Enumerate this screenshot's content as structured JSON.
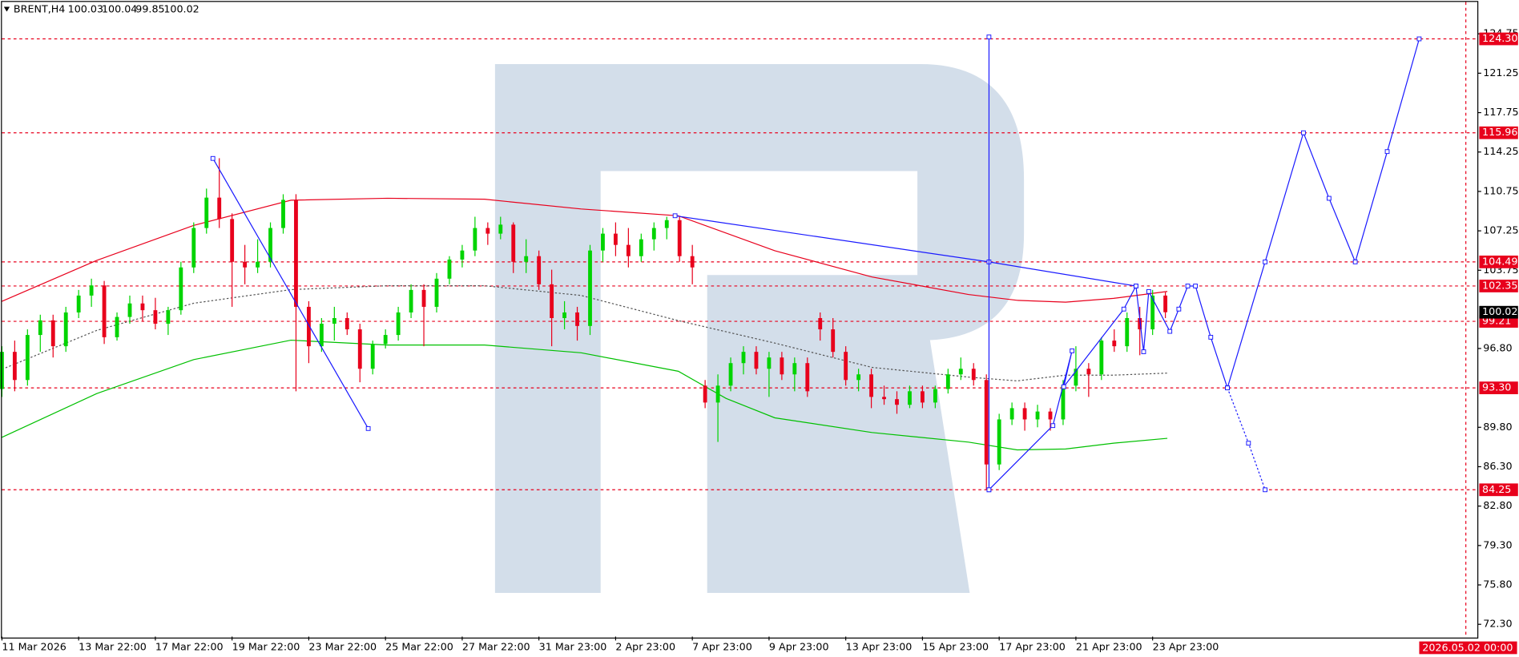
{
  "chart_data": {
    "type": "candlestick",
    "symbol": "BRENT,H4",
    "quote": [
      100.03,
      100.04,
      99.85,
      100.02
    ],
    "xlim": [
      0,
      230.8
    ],
    "ylim": [
      71.21,
      127.58
    ],
    "xticks": [
      {
        "value": 0,
        "label": "11 Mar 2026"
      },
      {
        "value": 12,
        "label": "13 Mar 22:00"
      },
      {
        "value": 24,
        "label": "17 Mar 22:00"
      },
      {
        "value": 36,
        "label": "19 Mar 22:00"
      },
      {
        "value": 48,
        "label": "23 Mar 22:00"
      },
      {
        "value": 60,
        "label": "25 Mar 22:00"
      },
      {
        "value": 72,
        "label": "27 Mar 22:00"
      },
      {
        "value": 84,
        "label": "31 Mar 23:00"
      },
      {
        "value": 96,
        "label": "2 Apr 23:00"
      },
      {
        "value": 108,
        "label": "7 Apr 23:00"
      },
      {
        "value": 120,
        "label": "9 Apr 23:00"
      },
      {
        "value": 132,
        "label": "13 Apr 23:00"
      },
      {
        "value": 144,
        "label": "15 Apr 23:00"
      },
      {
        "value": 156,
        "label": "17 Apr 23:00"
      },
      {
        "value": 168,
        "label": "21 Apr 23:00"
      },
      {
        "value": 180,
        "label": "23 Apr 23:00"
      }
    ],
    "time_marker": {
      "value": 229,
      "label": "2026.05.02 00:00"
    },
    "yticks": [
      124.75,
      121.25,
      117.75,
      114.25,
      110.75,
      107.25,
      103.75,
      {
        "value": 96.8,
        "label": "96.80"
      },
      {
        "value": 89.8,
        "label": "89.80"
      },
      {
        "value": 86.3,
        "label": "86.30"
      },
      {
        "value": 82.8,
        "label": "82.80"
      },
      {
        "value": 79.3,
        "label": "79.30"
      },
      {
        "value": 75.8,
        "label": "75.80"
      },
      {
        "value": 72.3,
        "label": "72.30"
      }
    ],
    "levels": [
      {
        "value": 124.3,
        "label": "124.30"
      },
      115.96,
      104.49,
      102.35,
      99.21,
      {
        "value": 93.3,
        "label": "93.30"
      },
      84.25
    ],
    "level_color": "#e8001c",
    "last_price": 100.02,
    "up_color": "#00d400",
    "down_color": "#e8001c",
    "x": [
      0,
      2,
      4,
      6,
      8,
      10,
      12,
      14,
      16,
      18,
      20,
      22,
      24,
      26,
      28,
      30,
      32,
      34,
      36,
      38,
      40,
      42,
      44,
      46,
      48,
      50,
      52,
      54,
      56,
      58,
      60,
      62,
      64,
      66,
      68,
      70,
      72,
      74,
      76,
      78,
      80,
      82,
      84,
      86,
      88,
      90,
      92,
      94,
      96,
      98,
      100,
      102,
      104,
      106,
      108,
      110,
      112,
      114,
      116,
      118,
      120,
      122,
      124,
      126,
      128,
      130,
      132,
      134,
      136,
      138,
      140,
      142,
      144,
      146,
      148,
      150,
      152,
      154,
      156,
      158,
      160,
      162,
      164,
      166,
      168,
      170,
      172,
      174,
      176,
      178,
      180,
      182
    ],
    "ohlc": [
      [
        93.2,
        97,
        92.5,
        96.5
      ],
      [
        96.5,
        97.5,
        93,
        94
      ],
      [
        94,
        98.5,
        93.5,
        98
      ],
      [
        98,
        99.8,
        96.5,
        99.3
      ],
      [
        99.3,
        99.8,
        96,
        97
      ],
      [
        97,
        100.5,
        96.5,
        100
      ],
      [
        100,
        102,
        99.5,
        101.5
      ],
      [
        101.5,
        103,
        100.5,
        102.4
      ],
      [
        102.4,
        102.8,
        97.2,
        97.8
      ],
      [
        97.8,
        100,
        97.5,
        99.6
      ],
      [
        99.6,
        101.5,
        99,
        100.8
      ],
      [
        100.8,
        101.5,
        99.2,
        100.2
      ],
      [
        100.2,
        101.3,
        98.5,
        99
      ],
      [
        99,
        100.5,
        98,
        100.2
      ],
      [
        100.2,
        104.5,
        99.8,
        104
      ],
      [
        104,
        108,
        103.5,
        107.5
      ],
      [
        107.5,
        111,
        107,
        110.2
      ],
      [
        110.2,
        113.7,
        107.5,
        108.3
      ],
      [
        108.3,
        108.8,
        100.5,
        104.5
      ],
      [
        104.5,
        106,
        102.5,
        104
      ],
      [
        104,
        106.5,
        103.5,
        104.5
      ],
      [
        104.5,
        108,
        104,
        107.5
      ],
      [
        107.5,
        110.5,
        107,
        110
      ],
      [
        110,
        110.5,
        93,
        100.5
      ],
      [
        100.5,
        101,
        95.5,
        97
      ],
      [
        97,
        99.5,
        96.5,
        99
      ],
      [
        99,
        100.5,
        97.5,
        99.5
      ],
      [
        99.5,
        100,
        98,
        98.5
      ],
      [
        98.5,
        99,
        93.8,
        95
      ],
      [
        95,
        97.5,
        94.5,
        97.2
      ],
      [
        97.2,
        98.5,
        96.8,
        98
      ],
      [
        98,
        100.5,
        97.5,
        100
      ],
      [
        100,
        102.5,
        99.5,
        102
      ],
      [
        102,
        102.5,
        97,
        100.5
      ],
      [
        100.5,
        103.5,
        100,
        103
      ],
      [
        103,
        105,
        102.5,
        104.7
      ],
      [
        104.7,
        106,
        104,
        105.5
      ],
      [
        105.5,
        108.5,
        105,
        107.5
      ],
      [
        107.5,
        108,
        106,
        107
      ],
      [
        107,
        108.5,
        106.5,
        107.8
      ],
      [
        107.8,
        108,
        103.5,
        104.5
      ],
      [
        104.5,
        106.5,
        103.5,
        105
      ],
      [
        105,
        105.5,
        102,
        102.5
      ],
      [
        102.5,
        103.8,
        97,
        99.5
      ],
      [
        99.5,
        101,
        98.5,
        100
      ],
      [
        100,
        100.5,
        97.5,
        98.8
      ],
      [
        98.8,
        106,
        98,
        105.5
      ],
      [
        105.5,
        107.5,
        104.5,
        107
      ],
      [
        107,
        108,
        105,
        106
      ],
      [
        106,
        107.5,
        104,
        105
      ],
      [
        105,
        107,
        104.5,
        106.5
      ],
      [
        106.5,
        108,
        105.5,
        107.5
      ],
      [
        107.5,
        108.5,
        106.5,
        108.2
      ],
      [
        108.2,
        108.5,
        104.5,
        105
      ],
      [
        105,
        106,
        102.5,
        104
      ],
      [
        93.5,
        94,
        91.5,
        92
      ],
      [
        92,
        94.5,
        88.5,
        93.5
      ],
      [
        93.5,
        96,
        93,
        95.5
      ],
      [
        95.5,
        97,
        94.5,
        96.5
      ],
      [
        96.5,
        97,
        94.5,
        95
      ],
      [
        95,
        96.5,
        92.5,
        96
      ],
      [
        96,
        96.5,
        94,
        94.5
      ],
      [
        94.5,
        96,
        93,
        95.5
      ],
      [
        95.5,
        96,
        92.5,
        93
      ],
      [
        99.5,
        100,
        97.5,
        98.5
      ],
      [
        98.5,
        99.5,
        96,
        96.5
      ],
      [
        96.5,
        97,
        93.5,
        94
      ],
      [
        94,
        95,
        93,
        94.5
      ],
      [
        94.5,
        95,
        91.5,
        92.5
      ],
      [
        92.5,
        93.5,
        91.8,
        92.3
      ],
      [
        92.3,
        93,
        91,
        91.8
      ],
      [
        91.8,
        93.5,
        91.5,
        93
      ],
      [
        93,
        93.5,
        91.5,
        92
      ],
      [
        92,
        93.5,
        91.5,
        93.2
      ],
      [
        93.2,
        95,
        92.8,
        94.5
      ],
      [
        94.5,
        96,
        94,
        95
      ],
      [
        95,
        95.5,
        93.5,
        94
      ],
      [
        94,
        94.5,
        84.3,
        86.5
      ],
      [
        86.5,
        91,
        86,
        90.5
      ],
      [
        90.5,
        92,
        90,
        91.5
      ],
      [
        91.5,
        92,
        89.5,
        90.5
      ],
      [
        90.5,
        91.8,
        89.8,
        91.2
      ],
      [
        91.2,
        91.5,
        89.5,
        90.5
      ],
      [
        90.5,
        94,
        90,
        93.5
      ],
      [
        93.5,
        97,
        93,
        95
      ],
      [
        95,
        95.5,
        92.5,
        94.5
      ],
      [
        94.5,
        97.8,
        94,
        97.5
      ],
      [
        97.5,
        98.5,
        96.5,
        97
      ],
      [
        97,
        100,
        96.5,
        99.5
      ],
      [
        99.5,
        100.5,
        96.2,
        98.5
      ],
      [
        98.5,
        102,
        98,
        101.5
      ],
      [
        101.5,
        101.8,
        99.5,
        100.02
      ]
    ],
    "overlays": [
      {
        "color": "#e8001c",
        "style": "solid",
        "x": [
          0,
          14.8,
          30,
          45.2,
          60.3,
          75.5,
          90.6,
          105.8,
          120.9,
          136.1,
          151.2,
          158.8,
          166.4,
          173.9,
          182.3
        ],
        "values": [
          100.99,
          104.62,
          107.73,
          109.97,
          110.14,
          110.06,
          109.19,
          108.59,
          105.48,
          103.15,
          101.6,
          101.08,
          100.91,
          101.25,
          101.86
        ]
      },
      {
        "color": "#00c000",
        "style": "solid",
        "x": [
          0,
          14.8,
          30,
          45.2,
          60.3,
          75.5,
          90.6,
          105.8,
          113.3,
          120.9,
          136.1,
          151.2,
          158.8,
          166.4,
          173.9,
          182.3
        ],
        "values": [
          88.91,
          92.79,
          95.81,
          97.54,
          97.11,
          97.11,
          96.42,
          94.78,
          92.36,
          90.64,
          89.34,
          88.48,
          87.79,
          87.87,
          88.39,
          88.82
        ]
      },
      {
        "color": "#555555",
        "style": "dotted",
        "x": [
          0,
          14.8,
          30,
          45.2,
          60.3,
          75.5,
          90.6,
          105.8,
          120.9,
          136.1,
          151.2,
          158.8,
          166.4,
          173.9,
          182.3
        ],
        "values": [
          94.95,
          98.4,
          100.82,
          102.03,
          102.37,
          102.37,
          101.51,
          99.27,
          97.28,
          95.12,
          94.26,
          93.92,
          94.43,
          94.43,
          94.61
        ]
      }
    ],
    "wave_color": "#1a1aff",
    "wave_lines": [
      {
        "style": "solid",
        "x": [
          33,
          57.3
        ],
        "values": [
          113.68,
          89.69
        ]
      },
      {
        "style": "solid",
        "x": [
          105.3,
          154.4,
          177.4
        ],
        "values": [
          108.59,
          104.49,
          102.35
        ]
      },
      {
        "style": "solid",
        "x": [
          154.4,
          154.4
        ],
        "values": [
          124.47,
          84.25
        ]
      },
      {
        "style": "solid",
        "x": [
          154.4,
          164.4,
          167.4,
          166.1,
          175.5,
          177.4,
          178.6,
          179.4,
          182.7,
          184.1,
          185.5,
          186.7,
          189.1,
          191.7,
          197.6,
          203.6,
          207.6,
          211.7,
          216.7,
          221.7
        ],
        "values": [
          84.25,
          89.95,
          96.59,
          93.4,
          100.3,
          102.35,
          96.51,
          101.86,
          98.32,
          100.3,
          102.35,
          102.35,
          97.8,
          93.3,
          104.49,
          115.96,
          110.14,
          104.49,
          114.29,
          124.3
        ]
      },
      {
        "style": "dotted",
        "x": [
          191.7,
          195,
          197.6
        ],
        "values": [
          93.3,
          88.39,
          84.25
        ]
      }
    ]
  }
}
